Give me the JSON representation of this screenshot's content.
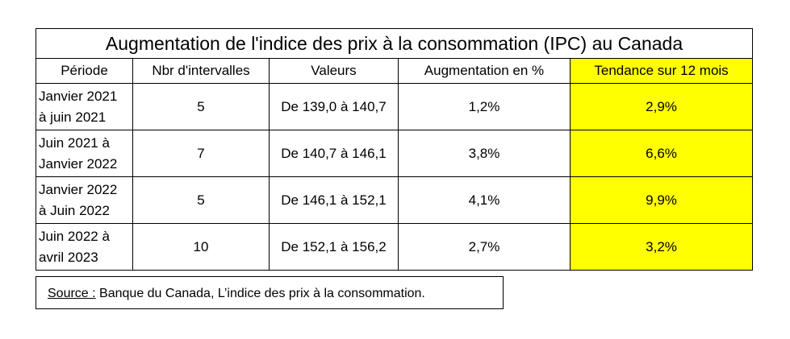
{
  "table": {
    "title": "Augmentation de l'indice des prix à la consommation (IPC) au Canada",
    "headers": [
      "Période",
      "Nbr d'intervalles",
      "Valeurs",
      "Augmentation en %",
      "Tendance sur 12 mois"
    ],
    "rows": [
      [
        "Janvier 2021\nà juin 2021",
        "5",
        "De 139,0 à 140,7",
        "1,2%",
        "2,9%"
      ],
      [
        "Juin 2021 à\nJanvier 2022",
        "7",
        "De 140,7 à 146,1",
        "3,8%",
        "6,6%"
      ],
      [
        "Janvier 2022\nà Juin 2022",
        "5",
        "De 146,1 à 152,1",
        "4,1%",
        "9,9%"
      ],
      [
        "Juin 2022 à\navril 2023",
        "10",
        "De 152,1 à 156,2",
        "2,7%",
        "3,2%"
      ]
    ]
  },
  "source": {
    "label": "Source :",
    "text": "Banque du Canada, L’indice des prix à la consommation."
  }
}
